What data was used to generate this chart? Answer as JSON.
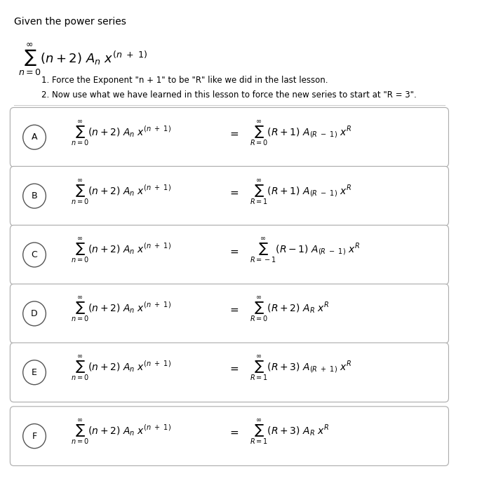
{
  "background_color": "#ffffff",
  "title_text": "Given the power series",
  "main_series": "$\\sum_{n=0}^{\\infty} (n + 2)\\ A_n\\ x^{(n\\ +\\ 1)}$",
  "instruction1": "1. Force the Exponent \"n + 1\" to be \"R\" like we did in the last lesson.",
  "instruction2": "2. Now use what we have learned in this lesson to force the new series to start at \"R = 3\".",
  "options": [
    {
      "label": "A",
      "lhs": "$\\sum_{n=0}^{\\infty} (n + 2)\\ A_n\\ x^{(n\\ +\\ 1)}$",
      "rhs": "$\\sum_{R=0}^{\\infty} (R + 1)\\ A_{(R\\ -\\ 1)}\\ x^R$"
    },
    {
      "label": "B",
      "lhs": "$\\sum_{n=0}^{\\infty} (n + 2)\\ A_n\\ x^{(n\\ +\\ 1)}$",
      "rhs": "$\\sum_{R=1}^{\\infty} (R + 1)\\ A_{(R\\ -\\ 1)}\\ x^R$"
    },
    {
      "label": "C",
      "lhs": "$\\sum_{n=0}^{\\infty} (n + 2)\\ A_n\\ x^{(n\\ +\\ 1)}$",
      "rhs": "$\\sum_{R=-1}^{\\infty} (R - 1)\\ A_{(R\\ -\\ 1)}\\ x^R$"
    },
    {
      "label": "D",
      "lhs": "$\\sum_{n=0}^{\\infty} (n + 2)\\ A_n\\ x^{(n\\ +\\ 1)}$",
      "rhs": "$\\sum_{R=0}^{\\infty} (R + 2)\\ A_R\\ x^R$"
    },
    {
      "label": "E",
      "lhs": "$\\sum_{n=0}^{\\infty} (n + 2)\\ A_n\\ x^{(n\\ +\\ 1)}$",
      "rhs": "$\\sum_{R=1}^{\\infty} (R + 3)\\ A_{(R\\ +\\ 1)}\\ x^R$"
    },
    {
      "label": "F",
      "lhs": "$\\sum_{n=0}^{\\infty} (n + 2)\\ A_n\\ x^{(n\\ +\\ 1)}$",
      "rhs": "$\\sum_{R=1}^{\\infty} (R + 3)\\ A_R\\ x^R$"
    }
  ],
  "fig_width": 6.97,
  "fig_height": 6.99,
  "dpi": 100
}
